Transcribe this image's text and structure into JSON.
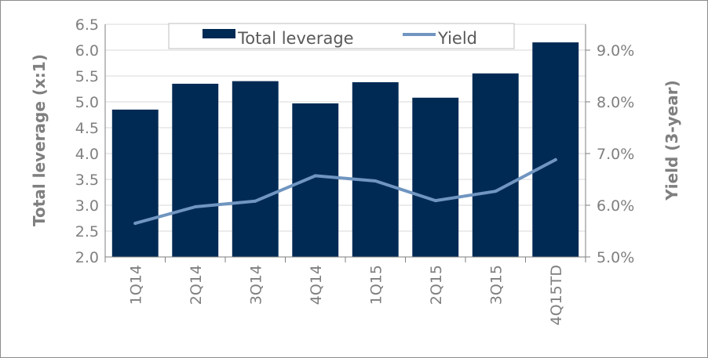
{
  "chart_data": {
    "type": "bar",
    "categories": [
      "1Q14",
      "2Q14",
      "3Q14",
      "4Q14",
      "1Q15",
      "2Q15",
      "3Q15",
      "4Q15TD"
    ],
    "series": [
      {
        "name": "Total leverage",
        "type": "bar",
        "axis": "left",
        "color": "#002a54",
        "values": [
          4.85,
          5.35,
          5.4,
          4.97,
          5.38,
          5.08,
          5.55,
          6.15
        ]
      },
      {
        "name": "Yield",
        "type": "line",
        "axis": "right",
        "color": "#7095c0",
        "values": [
          5.65,
          5.97,
          6.08,
          6.57,
          6.47,
          6.09,
          6.27,
          6.88
        ]
      }
    ],
    "ylabel": "Total leverage (x:1)",
    "y2label": "Yield (3-year)",
    "ylim": [
      2.0,
      6.5
    ],
    "y2lim": [
      5.0,
      9.5
    ],
    "yticks": [
      "2.0",
      "2.5",
      "3.0",
      "3.5",
      "4.0",
      "4.5",
      "5.0",
      "5.5",
      "6.0",
      "6.5"
    ],
    "y2ticks": [
      "5.0%",
      "6.0%",
      "7.0%",
      "8.0%",
      "9.0%"
    ],
    "grid": "horizontal",
    "legend": "top-center"
  }
}
